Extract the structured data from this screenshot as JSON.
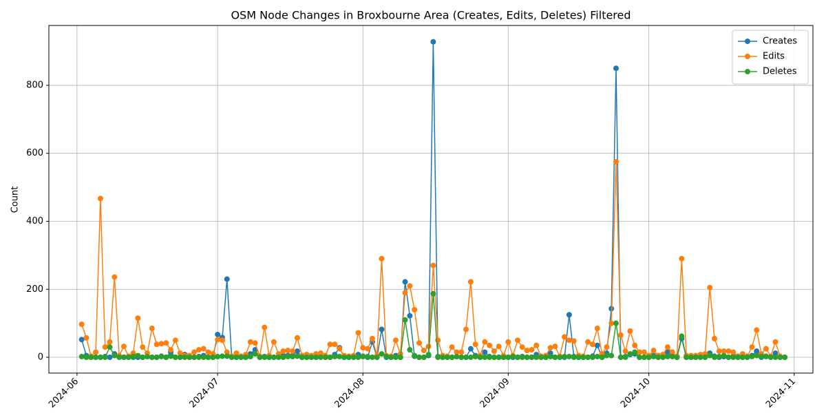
{
  "chart_data": {
    "type": "line",
    "title": "OSM Node Changes in Broxbourne Area (Creates, Edits, Deletes) Filtered",
    "ylabel": "Count",
    "x": [
      "2024-06-02",
      "2024-06-03",
      "2024-06-04",
      "2024-06-05",
      "2024-06-06",
      "2024-06-07",
      "2024-06-08",
      "2024-06-09",
      "2024-06-10",
      "2024-06-11",
      "2024-06-12",
      "2024-06-13",
      "2024-06-14",
      "2024-06-15",
      "2024-06-16",
      "2024-06-17",
      "2024-06-18",
      "2024-06-19",
      "2024-06-20",
      "2024-06-21",
      "2024-06-22",
      "2024-06-23",
      "2024-06-24",
      "2024-06-25",
      "2024-06-26",
      "2024-06-27",
      "2024-06-28",
      "2024-06-29",
      "2024-06-30",
      "2024-07-01",
      "2024-07-02",
      "2024-07-03",
      "2024-07-04",
      "2024-07-05",
      "2024-07-06",
      "2024-07-07",
      "2024-07-08",
      "2024-07-09",
      "2024-07-10",
      "2024-07-11",
      "2024-07-12",
      "2024-07-13",
      "2024-07-14",
      "2024-07-15",
      "2024-07-16",
      "2024-07-17",
      "2024-07-18",
      "2024-07-19",
      "2024-07-20",
      "2024-07-21",
      "2024-07-22",
      "2024-07-23",
      "2024-07-24",
      "2024-07-25",
      "2024-07-26",
      "2024-07-27",
      "2024-07-28",
      "2024-07-29",
      "2024-07-30",
      "2024-07-31",
      "2024-08-01",
      "2024-08-02",
      "2024-08-03",
      "2024-08-04",
      "2024-08-05",
      "2024-08-06",
      "2024-08-07",
      "2024-08-08",
      "2024-08-09",
      "2024-08-10",
      "2024-08-11",
      "2024-08-12",
      "2024-08-13",
      "2024-08-14",
      "2024-08-15",
      "2024-08-16",
      "2024-08-17",
      "2024-08-18",
      "2024-08-19",
      "2024-08-20",
      "2024-08-21",
      "2024-08-22",
      "2024-08-23",
      "2024-08-24",
      "2024-08-25",
      "2024-08-26",
      "2024-08-27",
      "2024-08-28",
      "2024-08-29",
      "2024-08-30",
      "2024-08-31",
      "2024-09-01",
      "2024-09-02",
      "2024-09-03",
      "2024-09-04",
      "2024-09-05",
      "2024-09-06",
      "2024-09-07",
      "2024-09-08",
      "2024-09-09",
      "2024-09-10",
      "2024-09-11",
      "2024-09-12",
      "2024-09-13",
      "2024-09-14",
      "2024-09-15",
      "2024-09-16",
      "2024-09-17",
      "2024-09-18",
      "2024-09-19",
      "2024-09-20",
      "2024-09-21",
      "2024-09-22",
      "2024-09-23",
      "2024-09-24",
      "2024-09-25",
      "2024-09-26",
      "2024-09-27",
      "2024-09-28",
      "2024-09-29",
      "2024-09-30",
      "2024-10-01",
      "2024-10-02",
      "2024-10-03",
      "2024-10-04",
      "2024-10-05",
      "2024-10-06",
      "2024-10-07",
      "2024-10-08",
      "2024-10-09",
      "2024-10-10",
      "2024-10-11",
      "2024-10-12",
      "2024-10-13",
      "2024-10-14",
      "2024-10-15",
      "2024-10-16",
      "2024-10-17",
      "2024-10-18",
      "2024-10-19",
      "2024-10-20",
      "2024-10-21",
      "2024-10-22",
      "2024-10-23",
      "2024-10-24",
      "2024-10-25",
      "2024-10-26",
      "2024-10-27",
      "2024-10-28",
      "2024-10-29",
      "2024-10-30"
    ],
    "series": [
      {
        "name": "Creates",
        "color": "#1f77b4",
        "values": [
          52,
          5,
          0,
          0,
          0,
          2,
          0,
          10,
          2,
          0,
          0,
          0,
          0,
          0,
          2,
          0,
          0,
          3,
          0,
          15,
          0,
          0,
          8,
          0,
          0,
          2,
          5,
          0,
          0,
          67,
          58,
          230,
          2,
          0,
          0,
          0,
          10,
          22,
          0,
          2,
          0,
          0,
          2,
          5,
          5,
          5,
          18,
          0,
          0,
          0,
          0,
          2,
          0,
          0,
          8,
          28,
          0,
          0,
          0,
          8,
          3,
          0,
          45,
          0,
          82,
          0,
          0,
          5,
          0,
          222,
          122,
          3,
          0,
          0,
          5,
          928,
          2,
          0,
          0,
          0,
          2,
          0,
          0,
          25,
          5,
          0,
          15,
          2,
          0,
          0,
          0,
          0,
          0,
          0,
          2,
          0,
          0,
          8,
          0,
          0,
          12,
          0,
          0,
          0,
          125,
          2,
          0,
          0,
          0,
          3,
          35,
          0,
          12,
          143,
          850,
          0,
          2,
          8,
          10,
          0,
          0,
          0,
          5,
          0,
          2,
          15,
          5,
          0,
          55,
          0,
          0,
          0,
          2,
          0,
          12,
          3,
          0,
          2,
          0,
          3,
          0,
          0,
          0,
          5,
          18,
          0,
          3,
          0,
          12,
          0,
          0
        ]
      },
      {
        "name": "Edits",
        "color": "#ff7f0e",
        "values": [
          97,
          57,
          3,
          15,
          467,
          30,
          45,
          236,
          5,
          32,
          3,
          12,
          115,
          30,
          12,
          85,
          38,
          40,
          42,
          22,
          50,
          12,
          5,
          5,
          15,
          22,
          25,
          15,
          10,
          52,
          50,
          15,
          3,
          12,
          3,
          8,
          45,
          42,
          3,
          88,
          5,
          45,
          10,
          18,
          20,
          18,
          57,
          5,
          8,
          5,
          10,
          12,
          5,
          38,
          38,
          25,
          5,
          3,
          5,
          72,
          28,
          25,
          55,
          5,
          290,
          5,
          3,
          50,
          10,
          190,
          210,
          140,
          42,
          20,
          32,
          270,
          50,
          5,
          3,
          30,
          15,
          15,
          82,
          222,
          38,
          5,
          45,
          35,
          18,
          32,
          5,
          45,
          5,
          50,
          30,
          20,
          22,
          35,
          3,
          5,
          28,
          32,
          3,
          60,
          50,
          48,
          5,
          3,
          45,
          38,
          85,
          10,
          30,
          100,
          575,
          65,
          18,
          77,
          35,
          15,
          15,
          5,
          20,
          5,
          8,
          30,
          15,
          3,
          290,
          5,
          5,
          5,
          8,
          10,
          205,
          55,
          18,
          18,
          18,
          15,
          3,
          10,
          3,
          30,
          80,
          10,
          25,
          3,
          45,
          3,
          0
        ]
      },
      {
        "name": "Deletes",
        "color": "#2ca02c",
        "values": [
          2,
          0,
          0,
          0,
          0,
          0,
          30,
          5,
          0,
          0,
          0,
          2,
          5,
          0,
          2,
          0,
          0,
          2,
          0,
          3,
          0,
          0,
          0,
          0,
          0,
          0,
          0,
          0,
          0,
          2,
          3,
          3,
          0,
          0,
          0,
          0,
          2,
          10,
          0,
          0,
          0,
          0,
          0,
          0,
          2,
          2,
          3,
          0,
          0,
          0,
          0,
          0,
          0,
          0,
          2,
          2,
          0,
          0,
          0,
          0,
          2,
          2,
          0,
          0,
          10,
          2,
          0,
          0,
          0,
          110,
          22,
          5,
          0,
          0,
          8,
          187,
          0,
          0,
          0,
          0,
          2,
          0,
          0,
          0,
          2,
          0,
          0,
          0,
          0,
          0,
          0,
          0,
          2,
          0,
          0,
          0,
          0,
          0,
          0,
          0,
          2,
          0,
          0,
          2,
          2,
          0,
          0,
          0,
          0,
          0,
          2,
          0,
          5,
          5,
          100,
          0,
          0,
          10,
          15,
          0,
          0,
          0,
          2,
          0,
          0,
          2,
          2,
          0,
          62,
          0,
          0,
          0,
          0,
          0,
          5,
          0,
          2,
          5,
          0,
          0,
          0,
          0,
          0,
          2,
          5,
          2,
          2,
          0,
          0,
          0,
          0
        ]
      }
    ],
    "xlim": [
      "2024-05-26",
      "2024-11-05"
    ],
    "xticks": [
      {
        "value": "2024-06-01",
        "label": "2024-06"
      },
      {
        "value": "2024-07-01",
        "label": "2024-07"
      },
      {
        "value": "2024-08-01",
        "label": "2024-08"
      },
      {
        "value": "2024-09-01",
        "label": "2024-09"
      },
      {
        "value": "2024-10-01",
        "label": "2024-10"
      },
      {
        "value": "2024-11-01",
        "label": "2024-11"
      }
    ],
    "ylim": [
      -46.5,
      976
    ],
    "yticks": [
      0,
      200,
      400,
      600,
      800
    ],
    "grid": true,
    "legend": "upper right"
  }
}
